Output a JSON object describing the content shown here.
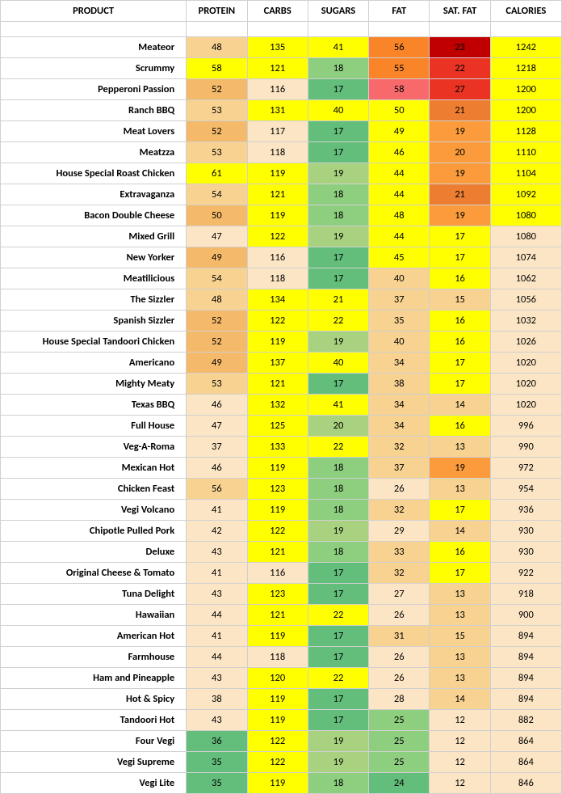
{
  "headers": [
    "PRODUCT",
    "PROTEIN",
    "CARBS",
    "SUGARS",
    "FAT",
    "SAT. FAT",
    "CALORIES"
  ],
  "colors": {
    "tan_lt": "#fbe5c4",
    "tan": "#f8d291",
    "tan_dk": "#f5b96a",
    "yellow": "#ffff00",
    "yellow_d": "#f5f500",
    "green": "#63be7b",
    "green_l": "#8ece7f",
    "green_m": "#a8d27f",
    "orange_l": "#fdb66c",
    "orange": "#fb9b3b",
    "orange_d": "#f98528",
    "red_o": "#f8696b",
    "red": "#ea3323",
    "dred": "#c00000",
    "dorange": "#ed7d31"
  },
  "rows": [
    {
      "product": "Meateor",
      "vals": [
        48,
        135,
        41,
        56,
        23,
        1242
      ],
      "bg": [
        "#f8d291",
        "#ffff00",
        "#ffff00",
        "#f98528",
        "#c00000",
        "#ffff00"
      ]
    },
    {
      "product": "Scrummy",
      "vals": [
        58,
        121,
        18,
        55,
        22,
        1218
      ],
      "bg": [
        "#ffff00",
        "#ffff00",
        "#8ece7f",
        "#f98528",
        "#ea3323",
        "#ffff00"
      ]
    },
    {
      "product": "Pepperoni Passion",
      "vals": [
        52,
        116,
        17,
        58,
        27,
        1200
      ],
      "bg": [
        "#f5b96a",
        "#fbe5c4",
        "#63be7b",
        "#f8696b",
        "#ea3323",
        "#ffff00"
      ]
    },
    {
      "product": "Ranch BBQ",
      "vals": [
        53,
        131,
        40,
        50,
        21,
        1200
      ],
      "bg": [
        "#f8d291",
        "#ffff00",
        "#ffff00",
        "#ffff00",
        "#ed7d31",
        "#ffff00"
      ]
    },
    {
      "product": "Meat Lovers",
      "vals": [
        52,
        117,
        17,
        49,
        19,
        1128
      ],
      "bg": [
        "#f5b96a",
        "#fbe5c4",
        "#63be7b",
        "#ffff00",
        "#fb9b3b",
        "#ffff00"
      ]
    },
    {
      "product": "Meatzza",
      "vals": [
        53,
        118,
        17,
        46,
        20,
        1110
      ],
      "bg": [
        "#f8d291",
        "#fbe5c4",
        "#63be7b",
        "#ffff00",
        "#fb9b3b",
        "#ffff00"
      ]
    },
    {
      "product": "House Special Roast Chicken",
      "vals": [
        61,
        119,
        19,
        44,
        19,
        1104
      ],
      "bg": [
        "#ffff00",
        "#ffff00",
        "#a8d27f",
        "#ffff00",
        "#fb9b3b",
        "#ffff00"
      ]
    },
    {
      "product": "Extravaganza",
      "vals": [
        54,
        121,
        18,
        44,
        21,
        1092
      ],
      "bg": [
        "#f8d291",
        "#ffff00",
        "#8ece7f",
        "#ffff00",
        "#ed7d31",
        "#ffff00"
      ]
    },
    {
      "product": "Bacon Double Cheese",
      "vals": [
        50,
        119,
        18,
        48,
        19,
        1080
      ],
      "bg": [
        "#f5b96a",
        "#ffff00",
        "#8ece7f",
        "#ffff00",
        "#fb9b3b",
        "#ffff00"
      ]
    },
    {
      "product": "Mixed Grill",
      "vals": [
        47,
        122,
        19,
        44,
        17,
        1080
      ],
      "bg": [
        "#fbe5c4",
        "#ffff00",
        "#a8d27f",
        "#ffff00",
        "#ffff00",
        "#fbe5c4"
      ]
    },
    {
      "product": "New Yorker",
      "vals": [
        49,
        116,
        17,
        45,
        17,
        1074
      ],
      "bg": [
        "#f5b96a",
        "#fbe5c4",
        "#63be7b",
        "#ffff00",
        "#ffff00",
        "#fbe5c4"
      ]
    },
    {
      "product": "Meatilicious",
      "vals": [
        54,
        118,
        17,
        40,
        16,
        1062
      ],
      "bg": [
        "#f8d291",
        "#fbe5c4",
        "#63be7b",
        "#f8d291",
        "#ffff00",
        "#fbe5c4"
      ]
    },
    {
      "product": "The Sizzler",
      "vals": [
        48,
        134,
        21,
        37,
        15,
        1056
      ],
      "bg": [
        "#f8d291",
        "#ffff00",
        "#ffff00",
        "#f8d291",
        "#f8d291",
        "#fbe5c4"
      ]
    },
    {
      "product": "Spanish Sizzler",
      "vals": [
        52,
        122,
        22,
        35,
        16,
        1032
      ],
      "bg": [
        "#f5b96a",
        "#ffff00",
        "#ffff00",
        "#f8d291",
        "#ffff00",
        "#fbe5c4"
      ]
    },
    {
      "product": "House Special Tandoori Chicken",
      "vals": [
        52,
        119,
        19,
        40,
        16,
        1026
      ],
      "bg": [
        "#f5b96a",
        "#ffff00",
        "#a8d27f",
        "#f8d291",
        "#ffff00",
        "#fbe5c4"
      ]
    },
    {
      "product": "Americano",
      "vals": [
        49,
        137,
        40,
        34,
        17,
        1020
      ],
      "bg": [
        "#f5b96a",
        "#ffff00",
        "#ffff00",
        "#f8d291",
        "#ffff00",
        "#fbe5c4"
      ]
    },
    {
      "product": "Mighty Meaty",
      "vals": [
        53,
        121,
        17,
        38,
        17,
        1020
      ],
      "bg": [
        "#f8d291",
        "#ffff00",
        "#63be7b",
        "#f8d291",
        "#ffff00",
        "#fbe5c4"
      ]
    },
    {
      "product": "Texas BBQ",
      "vals": [
        46,
        132,
        41,
        34,
        14,
        1020
      ],
      "bg": [
        "#fbe5c4",
        "#ffff00",
        "#ffff00",
        "#f8d291",
        "#f8d291",
        "#fbe5c4"
      ]
    },
    {
      "product": "Full House",
      "vals": [
        47,
        125,
        20,
        34,
        16,
        996
      ],
      "bg": [
        "#fbe5c4",
        "#ffff00",
        "#a8d27f",
        "#f8d291",
        "#ffff00",
        "#fbe5c4"
      ]
    },
    {
      "product": "Veg-A-Roma",
      "vals": [
        37,
        133,
        22,
        32,
        13,
        990
      ],
      "bg": [
        "#fbe5c4",
        "#ffff00",
        "#ffff00",
        "#f8d291",
        "#f8d291",
        "#fbe5c4"
      ]
    },
    {
      "product": "Mexican Hot",
      "vals": [
        46,
        119,
        18,
        37,
        19,
        972
      ],
      "bg": [
        "#fbe5c4",
        "#ffff00",
        "#8ece7f",
        "#f8d291",
        "#fb9b3b",
        "#fbe5c4"
      ]
    },
    {
      "product": "Chicken Feast",
      "vals": [
        56,
        123,
        18,
        26,
        13,
        954
      ],
      "bg": [
        "#f8d291",
        "#ffff00",
        "#8ece7f",
        "#fbe5c4",
        "#f8d291",
        "#fbe5c4"
      ]
    },
    {
      "product": "Vegi Volcano",
      "vals": [
        41,
        119,
        18,
        32,
        17,
        936
      ],
      "bg": [
        "#fbe5c4",
        "#ffff00",
        "#8ece7f",
        "#f8d291",
        "#ffff00",
        "#fbe5c4"
      ]
    },
    {
      "product": "Chipotle Pulled Pork",
      "vals": [
        42,
        122,
        19,
        29,
        14,
        930
      ],
      "bg": [
        "#fbe5c4",
        "#ffff00",
        "#a8d27f",
        "#fbe5c4",
        "#f8d291",
        "#fbe5c4"
      ]
    },
    {
      "product": "Deluxe",
      "vals": [
        43,
        121,
        18,
        33,
        16,
        930
      ],
      "bg": [
        "#fbe5c4",
        "#ffff00",
        "#8ece7f",
        "#f8d291",
        "#ffff00",
        "#fbe5c4"
      ]
    },
    {
      "product": "Original Cheese & Tomato",
      "vals": [
        41,
        116,
        17,
        32,
        17,
        922
      ],
      "bg": [
        "#fbe5c4",
        "#fbe5c4",
        "#63be7b",
        "#f8d291",
        "#ffff00",
        "#fbe5c4"
      ]
    },
    {
      "product": "Tuna Delight",
      "vals": [
        43,
        123,
        17,
        27,
        13,
        918
      ],
      "bg": [
        "#fbe5c4",
        "#ffff00",
        "#63be7b",
        "#fbe5c4",
        "#f8d291",
        "#fbe5c4"
      ]
    },
    {
      "product": "Hawaiian",
      "vals": [
        44,
        121,
        22,
        26,
        13,
        900
      ],
      "bg": [
        "#fbe5c4",
        "#ffff00",
        "#ffff00",
        "#fbe5c4",
        "#f8d291",
        "#fbe5c4"
      ]
    },
    {
      "product": "American Hot",
      "vals": [
        41,
        119,
        17,
        31,
        15,
        894
      ],
      "bg": [
        "#fbe5c4",
        "#ffff00",
        "#63be7b",
        "#f8d291",
        "#f8d291",
        "#fbe5c4"
      ]
    },
    {
      "product": "Farmhouse",
      "vals": [
        44,
        118,
        17,
        26,
        13,
        894
      ],
      "bg": [
        "#fbe5c4",
        "#fbe5c4",
        "#63be7b",
        "#fbe5c4",
        "#f8d291",
        "#fbe5c4"
      ]
    },
    {
      "product": "Ham and Pineapple",
      "vals": [
        43,
        120,
        22,
        26,
        13,
        894
      ],
      "bg": [
        "#fbe5c4",
        "#ffff00",
        "#ffff00",
        "#fbe5c4",
        "#f8d291",
        "#fbe5c4"
      ]
    },
    {
      "product": "Hot & Spicy",
      "vals": [
        38,
        119,
        17,
        28,
        14,
        894
      ],
      "bg": [
        "#fbe5c4",
        "#ffff00",
        "#63be7b",
        "#fbe5c4",
        "#f8d291",
        "#fbe5c4"
      ]
    },
    {
      "product": "Tandoori Hot",
      "vals": [
        43,
        119,
        17,
        25,
        12,
        882
      ],
      "bg": [
        "#fbe5c4",
        "#ffff00",
        "#63be7b",
        "#8ece7f",
        "#fbe5c4",
        "#fbe5c4"
      ]
    },
    {
      "product": "Four Vegi",
      "vals": [
        36,
        122,
        19,
        25,
        12,
        864
      ],
      "bg": [
        "#63be7b",
        "#ffff00",
        "#a8d27f",
        "#8ece7f",
        "#fbe5c4",
        "#fbe5c4"
      ]
    },
    {
      "product": "Vegi Supreme",
      "vals": [
        35,
        122,
        19,
        25,
        12,
        864
      ],
      "bg": [
        "#63be7b",
        "#ffff00",
        "#a8d27f",
        "#8ece7f",
        "#fbe5c4",
        "#fbe5c4"
      ]
    },
    {
      "product": "Vegi Lite",
      "vals": [
        35,
        119,
        18,
        24,
        12,
        846
      ],
      "bg": [
        "#63be7b",
        "#ffff00",
        "#8ece7f",
        "#63be7b",
        "#fbe5c4",
        "#fbe5c4"
      ]
    }
  ]
}
